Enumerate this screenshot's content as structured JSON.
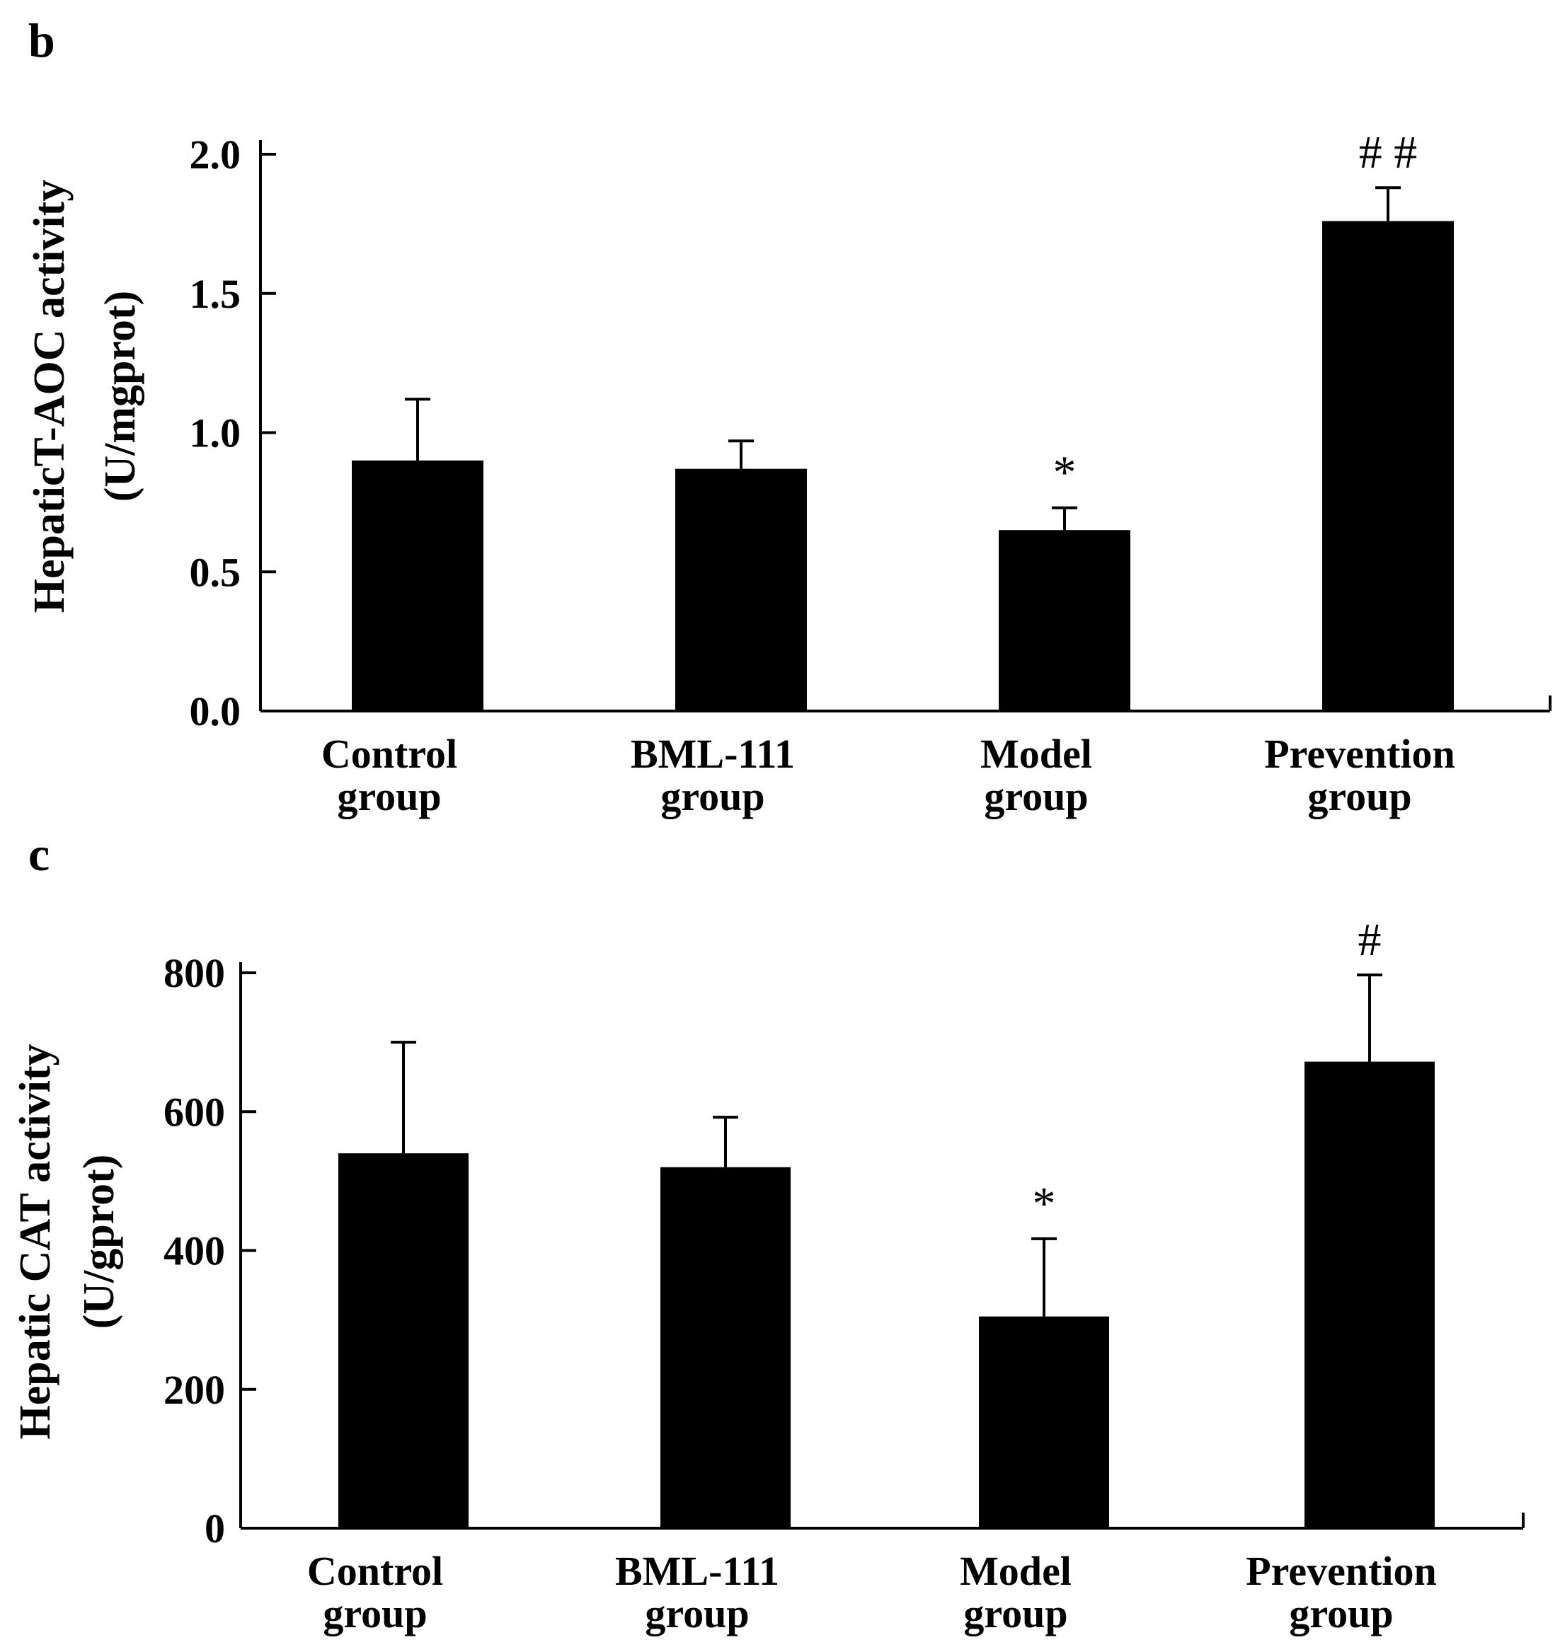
{
  "chart_data": [
    {
      "panel_label": "b",
      "type": "bar",
      "categories": [
        [
          "Control",
          "group"
        ],
        [
          "BML-111",
          "group"
        ],
        [
          "Model",
          "group"
        ],
        [
          "Prevention",
          "group"
        ]
      ],
      "values": [
        0.9,
        0.87,
        0.65,
        1.76
      ],
      "errors": [
        0.22,
        0.1,
        0.08,
        0.12
      ],
      "annotations": [
        "",
        "",
        "*",
        "# #"
      ],
      "ylabel": [
        "HepaticT-AOC activity",
        "(U/mgprot)"
      ],
      "ylim": [
        0,
        2.0
      ],
      "yticks": [
        0.0,
        0.5,
        1.0,
        1.5,
        2.0
      ],
      "ytick_labels": [
        "0.0",
        "0.5",
        "1.0",
        "1.5",
        "2.0"
      ],
      "grid": false,
      "bar_color": "#000000"
    },
    {
      "panel_label": "c",
      "type": "bar",
      "categories": [
        [
          "Control",
          "group"
        ],
        [
          "BML-111",
          "group"
        ],
        [
          "Model",
          "group"
        ],
        [
          "Prevention",
          "group"
        ]
      ],
      "values": [
        540,
        520,
        305,
        672
      ],
      "errors": [
        160,
        72,
        112,
        125
      ],
      "annotations": [
        "",
        "",
        "*",
        "#"
      ],
      "ylabel": [
        "Hepatic CAT activity",
        "(U/gprot)"
      ],
      "ylim": [
        0,
        800
      ],
      "yticks": [
        0,
        200,
        400,
        600,
        800
      ],
      "ytick_labels": [
        "0",
        "200",
        "400",
        "600",
        "800"
      ],
      "grid": false,
      "bar_color": "#000000"
    }
  ]
}
